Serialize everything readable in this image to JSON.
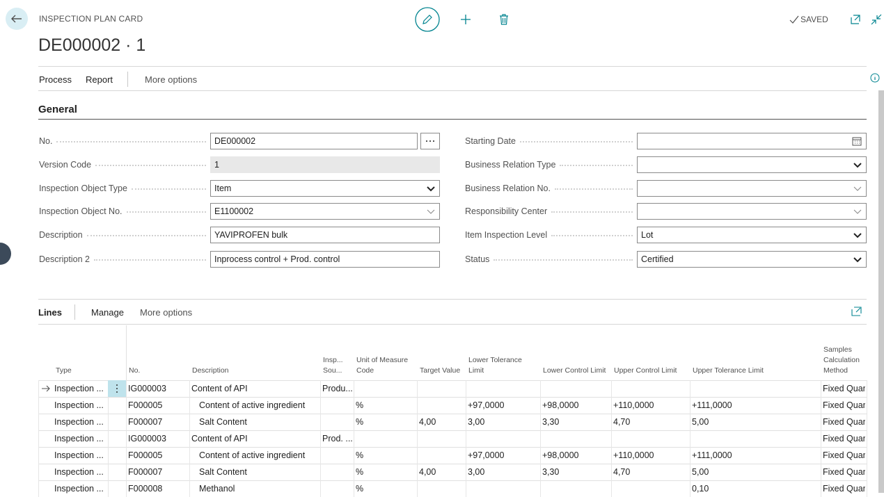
{
  "header": {
    "caption": "INSPECTION PLAN CARD",
    "title": "DE000002 · 1",
    "saved": "SAVED"
  },
  "actions": [
    "Process",
    "Report",
    "More options"
  ],
  "general": {
    "heading": "General",
    "left": [
      {
        "label": "No.",
        "value": "DE000002"
      },
      {
        "label": "Version Code",
        "value": "1"
      },
      {
        "label": "Inspection Object Type",
        "value": "Item"
      },
      {
        "label": "Inspection Object No.",
        "value": "E1100002"
      },
      {
        "label": "Description",
        "value": "YAVIPROFEN bulk"
      },
      {
        "label": "Description 2",
        "value": "Inprocess control + Prod. control"
      }
    ],
    "right": [
      {
        "label": "Starting Date",
        "value": null
      },
      {
        "label": "Business Relation Type",
        "value": null
      },
      {
        "label": "Business Relation No.",
        "value": null
      },
      {
        "label": "Responsibility Center",
        "value": null
      },
      {
        "label": "Item Inspection Level",
        "value": "Lot"
      },
      {
        "label": "Status",
        "value": "Certified"
      }
    ]
  },
  "lines": {
    "heading": "Lines",
    "actions": [
      "Manage",
      "More options"
    ],
    "columns": [
      "Type",
      "No.",
      "Description",
      "Insp... Sou...",
      "Unit of Measure Code",
      "Target Value",
      "Lower Tolerance Limit",
      "Lower Control Limit",
      "Upper Control Limit",
      "Upper Tolerance Limit",
      "Samples Calculation Method"
    ],
    "rows": [
      [
        "Inspection ...",
        "IG000003",
        "Content of API",
        "Produ...",
        null,
        null,
        null,
        null,
        null,
        null,
        "Fixed Quan"
      ],
      [
        "Inspection ...",
        "F000005",
        "Content of active ingredient",
        null,
        "%",
        null,
        "+97,0000",
        "+98,0000",
        "+110,0000",
        "+111,0000",
        "Fixed Quan"
      ],
      [
        "Inspection ...",
        "F000007",
        "Salt Content",
        null,
        "%",
        "4,00",
        "3,00",
        "3,30",
        "4,70",
        "5,00",
        "Fixed Quan"
      ],
      [
        "Inspection ...",
        "IG000003",
        "Content of API",
        "Prod. ...",
        null,
        null,
        null,
        null,
        null,
        null,
        "Fixed Quan"
      ],
      [
        "Inspection ...",
        "F000005",
        "Content of active ingredient",
        null,
        "%",
        null,
        "+97,0000",
        "+98,0000",
        "+110,0000",
        "+111,0000",
        "Fixed Quan"
      ],
      [
        "Inspection ...",
        "F000007",
        "Salt Content",
        null,
        "%",
        "4,00",
        "3,00",
        "3,30",
        "4,70",
        "5,00",
        "Fixed Quan"
      ],
      [
        "Inspection ...",
        "F000008",
        "Methanol",
        null,
        "%",
        null,
        null,
        null,
        null,
        "0,10",
        "Fixed Quan"
      ]
    ]
  }
}
